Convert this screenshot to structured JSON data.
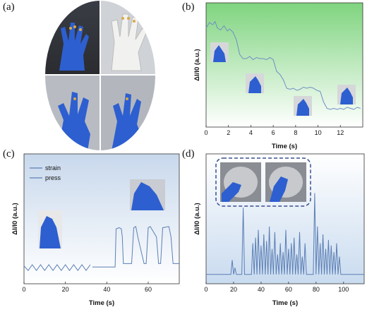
{
  "figure": {
    "panel_labels": [
      "(a)",
      "(b)",
      "(c)",
      "(d)"
    ]
  },
  "colors": {
    "line": "#5b7fb5",
    "line_b": "#6d8fc4",
    "panel_b_top": "#7fd47f",
    "panel_b_bottom": "#ffffff",
    "panel_c_top": "#c8d8ec",
    "panel_c_bottom": "#ffffff",
    "panel_d_top": "#ffffff",
    "panel_d_bottom": "#c9dbef",
    "glove_blue": "#2d5fd0",
    "inset_border": "#3a4f8f"
  },
  "chart_data": [
    {
      "panel": "(b)",
      "type": "line",
      "xlabel": "Time (s)",
      "ylabel": "ΔI/I0 (a.u.)",
      "xlim": [
        0,
        14
      ],
      "xticks": [
        0,
        2,
        4,
        6,
        8,
        10,
        12
      ],
      "ylim": [
        0,
        1
      ],
      "yticks_shown": false,
      "series": [
        {
          "x": [
            0,
            0.3,
            0.6,
            0.8,
            1.0,
            1.3,
            1.6,
            1.9,
            2.1,
            2.4,
            2.7,
            3.0,
            3.3,
            3.6,
            3.9,
            4.2,
            4.5,
            4.8,
            5.1,
            5.4,
            5.7,
            6.0,
            6.3,
            6.6,
            6.9,
            7.2,
            7.5,
            7.8,
            8.1,
            8.4,
            8.7,
            9.0,
            9.3,
            9.6,
            9.9,
            10.2,
            10.5,
            10.8,
            11.1,
            11.4,
            11.7,
            12.0,
            12.3,
            12.6,
            12.9,
            13.2,
            13.5,
            13.8
          ],
          "y": [
            0.87,
            0.92,
            0.9,
            0.93,
            0.87,
            0.85,
            0.89,
            0.84,
            0.86,
            0.83,
            0.76,
            0.62,
            0.58,
            0.58,
            0.6,
            0.57,
            0.59,
            0.58,
            0.58,
            0.57,
            0.59,
            0.57,
            0.46,
            0.43,
            0.38,
            0.3,
            0.29,
            0.3,
            0.28,
            0.29,
            0.31,
            0.3,
            0.31,
            0.3,
            0.28,
            0.27,
            0.17,
            0.11,
            0.1,
            0.11,
            0.1,
            0.11,
            0.1,
            0.12,
            0.11,
            0.1,
            0.12,
            0.11
          ]
        }
      ]
    },
    {
      "panel": "(c)",
      "type": "line",
      "xlabel": "Time (s)",
      "ylabel": "ΔI/I0 (a.u.)",
      "xlim": [
        0,
        75
      ],
      "xticks": [
        0,
        20,
        40,
        60
      ],
      "ylim": [
        0,
        1
      ],
      "yticks_shown": false,
      "legend": {
        "placement": "top-left",
        "entries": [
          "strain",
          "press"
        ]
      },
      "series": [
        {
          "name": "strain",
          "x": [
            0,
            2,
            4,
            6,
            8,
            10,
            12,
            14,
            16,
            18,
            20,
            22,
            24,
            26,
            28,
            30,
            32
          ],
          "y": [
            0.13,
            0.09,
            0.14,
            0.09,
            0.14,
            0.09,
            0.14,
            0.09,
            0.14,
            0.09,
            0.14,
            0.09,
            0.14,
            0.09,
            0.14,
            0.09,
            0.14
          ]
        },
        {
          "name": "press",
          "x": [
            33,
            44,
            44.5,
            46,
            47,
            47.5,
            48,
            52,
            53,
            54,
            55,
            58,
            59,
            60,
            61,
            64,
            65,
            66,
            67,
            70,
            71,
            72,
            73,
            75
          ],
          "y": [
            0.12,
            0.12,
            0.45,
            0.46,
            0.45,
            0.38,
            0.15,
            0.15,
            0.46,
            0.47,
            0.38,
            0.15,
            0.15,
            0.46,
            0.47,
            0.38,
            0.15,
            0.15,
            0.46,
            0.47,
            0.38,
            0.15,
            0.15,
            0.15
          ]
        }
      ]
    },
    {
      "panel": "(d)",
      "type": "line",
      "xlabel": "Time (s)",
      "ylabel": "ΔI/I0 (a.u.)",
      "xlim": [
        0,
        115
      ],
      "xticks": [
        0,
        20,
        40,
        60,
        80,
        100
      ],
      "ylim": [
        0,
        1
      ],
      "yticks_shown": false,
      "series": [
        {
          "x": [
            0,
            18,
            19,
            20,
            21,
            22,
            26,
            27,
            28,
            29,
            33,
            34,
            35,
            36,
            37,
            38,
            39,
            40,
            41,
            42,
            43,
            44,
            45,
            46,
            47,
            48,
            49,
            50,
            51,
            52,
            53,
            54,
            55,
            56,
            57,
            58,
            59,
            60,
            61,
            62,
            63,
            64,
            65,
            66,
            67,
            68,
            69,
            70,
            71,
            72,
            73,
            74,
            78,
            79,
            80,
            81,
            82,
            83,
            84,
            85,
            86,
            87,
            88,
            89,
            90,
            91,
            92,
            93,
            94,
            95,
            96,
            97,
            98,
            99,
            115
          ],
          "y": [
            0.02,
            0.02,
            0.15,
            0.02,
            0.08,
            0.02,
            0.02,
            0.62,
            0.02,
            0.02,
            0.02,
            0.3,
            0.02,
            0.35,
            0.02,
            0.42,
            0.02,
            0.28,
            0.02,
            0.38,
            0.02,
            0.32,
            0.02,
            0.45,
            0.02,
            0.25,
            0.02,
            0.4,
            0.02,
            0.2,
            0.02,
            0.3,
            0.02,
            0.22,
            0.02,
            0.42,
            0.02,
            0.25,
            0.02,
            0.3,
            0.02,
            0.35,
            0.02,
            0.2,
            0.02,
            0.4,
            0.02,
            0.18,
            0.02,
            0.3,
            0.02,
            0.02,
            0.02,
            0.75,
            0.02,
            0.45,
            0.02,
            0.3,
            0.02,
            0.38,
            0.02,
            0.25,
            0.02,
            0.33,
            0.02,
            0.28,
            0.02,
            0.22,
            0.02,
            0.3,
            0.02,
            0.18,
            0.02,
            0.02,
            0.02
          ]
        }
      ]
    }
  ]
}
